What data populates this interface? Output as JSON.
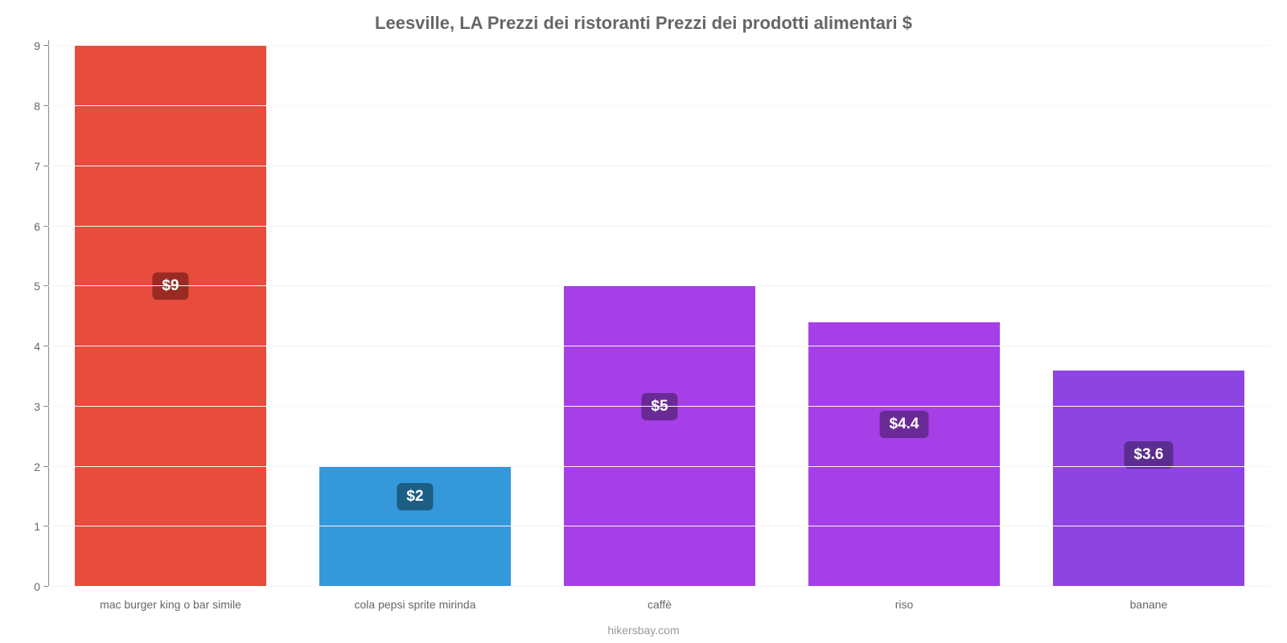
{
  "chart": {
    "type": "bar",
    "title": "Leesville, LA Prezzi dei ristoranti Prezzi dei prodotti alimentari $",
    "title_fontsize": 22,
    "title_color": "#666666",
    "credit": "hikersbay.com",
    "credit_color": "#999999",
    "background_color": "#ffffff",
    "grid_color": "#f5f5f5",
    "axis_color": "#888888",
    "y": {
      "min": 0,
      "max": 9.1,
      "ticks": [
        0,
        1,
        2,
        3,
        4,
        5,
        6,
        7,
        8,
        9
      ],
      "tick_label_color": "#666666",
      "tick_fontsize": 14
    },
    "x": {
      "tick_label_color": "#666666",
      "tick_fontsize": 14
    },
    "bar_width_ratio": 0.78,
    "categories": [
      "mac burger king o bar simile",
      "cola pepsi sprite mirinda",
      "caffè",
      "riso",
      "banane"
    ],
    "values": [
      9,
      2,
      5,
      4.4,
      3.6
    ],
    "value_labels": [
      "$9",
      "$2",
      "$5",
      "$4.4",
      "$3.6"
    ],
    "bar_colors": [
      "#e74c3c",
      "#3498db",
      "#a63fe8",
      "#a63fe8",
      "#8e44e0"
    ],
    "label_box_colors": [
      "#9a2b22",
      "#1d5e85",
      "#6a2a96",
      "#6a2a96",
      "#5c2d90"
    ],
    "value_label_fontsize": 19,
    "value_label_color": "#ffffff",
    "value_label_vertical_center_value": [
      5.0,
      1.5,
      3.0,
      2.7,
      2.2
    ]
  }
}
